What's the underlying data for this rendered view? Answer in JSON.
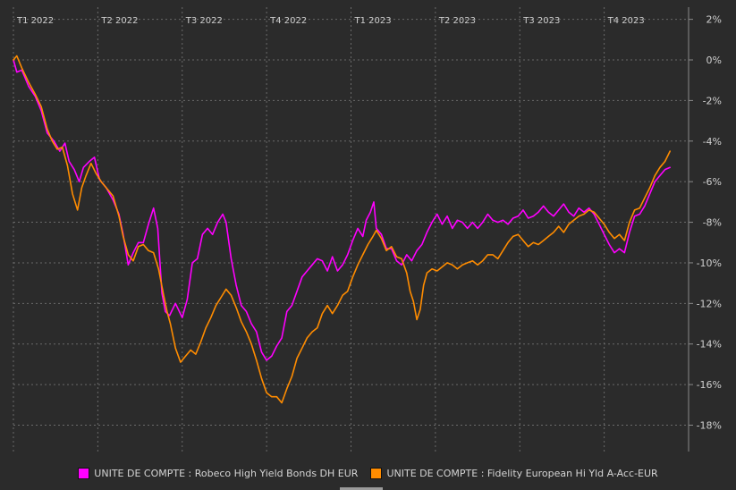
{
  "chart_data": {
    "type": "line",
    "title": "",
    "xlabel": "",
    "ylabel": "",
    "x_tick_labels": [
      "T1 2022",
      "T2 2022",
      "T3 2022",
      "T4 2022",
      "T1 2023",
      "T2 2023",
      "T3 2023",
      "T4 2023"
    ],
    "y_tick_labels": [
      "2%",
      "0%",
      "-2%",
      "-4%",
      "-6%",
      "-8%",
      "-10%",
      "-12%",
      "-14%",
      "-16%",
      "-18%"
    ],
    "y_ticks": [
      2,
      0,
      -2,
      -4,
      -6,
      -8,
      -10,
      -12,
      -14,
      -16,
      -18
    ],
    "ylim": [
      -19.3,
      2.6
    ],
    "xlim": [
      0.0,
      8.0
    ],
    "x_unit": "quarters since start of T1 2022",
    "grid": true,
    "legend_position": "bottom",
    "series": [
      {
        "name": "UNITE DE COMPTE : Robeco High Yield Bonds DH EUR",
        "color": "#ff00ff",
        "points": [
          [
            0.0,
            0.0
          ],
          [
            0.04,
            -0.6
          ],
          [
            0.1,
            -0.5
          ],
          [
            0.18,
            -1.3
          ],
          [
            0.26,
            -1.8
          ],
          [
            0.33,
            -2.5
          ],
          [
            0.4,
            -3.6
          ],
          [
            0.48,
            -4.0
          ],
          [
            0.55,
            -4.5
          ],
          [
            0.61,
            -4.1
          ],
          [
            0.66,
            -5.0
          ],
          [
            0.72,
            -5.4
          ],
          [
            0.78,
            -6.0
          ],
          [
            0.83,
            -5.3
          ],
          [
            0.9,
            -5.0
          ],
          [
            0.96,
            -4.8
          ],
          [
            1.02,
            -5.9
          ],
          [
            1.1,
            -6.3
          ],
          [
            1.18,
            -6.9
          ],
          [
            1.25,
            -7.6
          ],
          [
            1.3,
            -8.6
          ],
          [
            1.36,
            -10.1
          ],
          [
            1.42,
            -9.5
          ],
          [
            1.48,
            -9.0
          ],
          [
            1.54,
            -9.0
          ],
          [
            1.6,
            -8.1
          ],
          [
            1.66,
            -7.3
          ],
          [
            1.71,
            -8.3
          ],
          [
            1.76,
            -11.5
          ],
          [
            1.8,
            -12.4
          ],
          [
            1.85,
            -12.6
          ],
          [
            1.92,
            -12.0
          ],
          [
            2.0,
            -12.7
          ],
          [
            2.06,
            -11.8
          ],
          [
            2.12,
            -10.0
          ],
          [
            2.18,
            -9.8
          ],
          [
            2.24,
            -8.6
          ],
          [
            2.3,
            -8.3
          ],
          [
            2.36,
            -8.6
          ],
          [
            2.42,
            -8.0
          ],
          [
            2.48,
            -7.6
          ],
          [
            2.52,
            -8.0
          ],
          [
            2.58,
            -9.8
          ],
          [
            2.64,
            -11.1
          ],
          [
            2.7,
            -12.1
          ],
          [
            2.76,
            -12.4
          ],
          [
            2.82,
            -13.0
          ],
          [
            2.88,
            -13.4
          ],
          [
            2.94,
            -14.4
          ],
          [
            3.0,
            -14.8
          ],
          [
            3.06,
            -14.6
          ],
          [
            3.12,
            -14.1
          ],
          [
            3.18,
            -13.7
          ],
          [
            3.24,
            -12.4
          ],
          [
            3.3,
            -12.1
          ],
          [
            3.36,
            -11.4
          ],
          [
            3.42,
            -10.7
          ],
          [
            3.48,
            -10.4
          ],
          [
            3.54,
            -10.1
          ],
          [
            3.6,
            -9.8
          ],
          [
            3.66,
            -9.9
          ],
          [
            3.72,
            -10.4
          ],
          [
            3.78,
            -9.7
          ],
          [
            3.84,
            -10.4
          ],
          [
            3.9,
            -10.1
          ],
          [
            3.96,
            -9.6
          ],
          [
            4.02,
            -8.9
          ],
          [
            4.08,
            -8.3
          ],
          [
            4.14,
            -8.7
          ],
          [
            4.18,
            -7.9
          ],
          [
            4.23,
            -7.5
          ],
          [
            4.27,
            -7.0
          ],
          [
            4.3,
            -8.3
          ],
          [
            4.36,
            -8.6
          ],
          [
            4.42,
            -9.3
          ],
          [
            4.48,
            -9.3
          ],
          [
            4.54,
            -9.9
          ],
          [
            4.6,
            -10.1
          ],
          [
            4.66,
            -9.6
          ],
          [
            4.72,
            -9.9
          ],
          [
            4.78,
            -9.4
          ],
          [
            4.84,
            -9.1
          ],
          [
            4.9,
            -8.5
          ],
          [
            4.96,
            -8.0
          ],
          [
            5.02,
            -7.6
          ],
          [
            5.08,
            -8.1
          ],
          [
            5.14,
            -7.7
          ],
          [
            5.2,
            -8.3
          ],
          [
            5.26,
            -7.9
          ],
          [
            5.32,
            -8.0
          ],
          [
            5.38,
            -8.3
          ],
          [
            5.44,
            -8.0
          ],
          [
            5.5,
            -8.3
          ],
          [
            5.56,
            -8.0
          ],
          [
            5.62,
            -7.6
          ],
          [
            5.68,
            -7.9
          ],
          [
            5.74,
            -8.0
          ],
          [
            5.8,
            -7.9
          ],
          [
            5.86,
            -8.1
          ],
          [
            5.92,
            -7.8
          ],
          [
            5.98,
            -7.7
          ],
          [
            6.04,
            -7.4
          ],
          [
            6.1,
            -7.8
          ],
          [
            6.16,
            -7.7
          ],
          [
            6.22,
            -7.5
          ],
          [
            6.28,
            -7.2
          ],
          [
            6.34,
            -7.5
          ],
          [
            6.4,
            -7.7
          ],
          [
            6.46,
            -7.4
          ],
          [
            6.52,
            -7.1
          ],
          [
            6.58,
            -7.5
          ],
          [
            6.64,
            -7.7
          ],
          [
            6.7,
            -7.3
          ],
          [
            6.76,
            -7.5
          ],
          [
            6.82,
            -7.3
          ],
          [
            6.88,
            -7.6
          ],
          [
            6.94,
            -8.1
          ],
          [
            7.0,
            -8.6
          ],
          [
            7.06,
            -9.1
          ],
          [
            7.12,
            -9.5
          ],
          [
            7.18,
            -9.3
          ],
          [
            7.24,
            -9.5
          ],
          [
            7.3,
            -8.5
          ],
          [
            7.36,
            -7.7
          ],
          [
            7.42,
            -7.6
          ],
          [
            7.48,
            -7.2
          ],
          [
            7.54,
            -6.6
          ],
          [
            7.6,
            -6.0
          ],
          [
            7.66,
            -5.7
          ],
          [
            7.72,
            -5.4
          ],
          [
            7.78,
            -5.3
          ]
        ]
      },
      {
        "name": "UNITE DE COMPTE : Fidelity European Hi Yld A-Acc-EUR",
        "color": "#ff8c00",
        "points": [
          [
            0.0,
            0.0
          ],
          [
            0.04,
            0.2
          ],
          [
            0.1,
            -0.4
          ],
          [
            0.18,
            -1.1
          ],
          [
            0.26,
            -1.7
          ],
          [
            0.33,
            -2.3
          ],
          [
            0.4,
            -3.4
          ],
          [
            0.46,
            -4.0
          ],
          [
            0.52,
            -4.4
          ],
          [
            0.58,
            -4.3
          ],
          [
            0.64,
            -5.2
          ],
          [
            0.7,
            -6.6
          ],
          [
            0.76,
            -7.4
          ],
          [
            0.81,
            -6.3
          ],
          [
            0.86,
            -5.7
          ],
          [
            0.92,
            -5.1
          ],
          [
            0.98,
            -5.6
          ],
          [
            1.04,
            -6.0
          ],
          [
            1.1,
            -6.3
          ],
          [
            1.18,
            -6.7
          ],
          [
            1.25,
            -7.7
          ],
          [
            1.3,
            -8.7
          ],
          [
            1.36,
            -9.6
          ],
          [
            1.42,
            -9.9
          ],
          [
            1.48,
            -9.2
          ],
          [
            1.54,
            -9.1
          ],
          [
            1.6,
            -9.4
          ],
          [
            1.66,
            -9.5
          ],
          [
            1.72,
            -10.3
          ],
          [
            1.78,
            -11.6
          ],
          [
            1.82,
            -12.4
          ],
          [
            1.86,
            -13.0
          ],
          [
            1.92,
            -14.2
          ],
          [
            1.98,
            -14.9
          ],
          [
            2.04,
            -14.6
          ],
          [
            2.1,
            -14.3
          ],
          [
            2.16,
            -14.5
          ],
          [
            2.22,
            -13.9
          ],
          [
            2.28,
            -13.2
          ],
          [
            2.34,
            -12.7
          ],
          [
            2.4,
            -12.1
          ],
          [
            2.46,
            -11.7
          ],
          [
            2.52,
            -11.3
          ],
          [
            2.58,
            -11.6
          ],
          [
            2.64,
            -12.2
          ],
          [
            2.7,
            -12.9
          ],
          [
            2.76,
            -13.4
          ],
          [
            2.82,
            -14.0
          ],
          [
            2.88,
            -14.8
          ],
          [
            2.94,
            -15.7
          ],
          [
            3.0,
            -16.4
          ],
          [
            3.06,
            -16.6
          ],
          [
            3.12,
            -16.6
          ],
          [
            3.18,
            -16.9
          ],
          [
            3.24,
            -16.2
          ],
          [
            3.3,
            -15.6
          ],
          [
            3.36,
            -14.7
          ],
          [
            3.42,
            -14.2
          ],
          [
            3.48,
            -13.7
          ],
          [
            3.54,
            -13.4
          ],
          [
            3.6,
            -13.2
          ],
          [
            3.66,
            -12.5
          ],
          [
            3.72,
            -12.1
          ],
          [
            3.78,
            -12.5
          ],
          [
            3.84,
            -12.1
          ],
          [
            3.9,
            -11.6
          ],
          [
            3.96,
            -11.4
          ],
          [
            4.02,
            -10.7
          ],
          [
            4.08,
            -10.1
          ],
          [
            4.14,
            -9.6
          ],
          [
            4.2,
            -9.1
          ],
          [
            4.26,
            -8.7
          ],
          [
            4.3,
            -8.4
          ],
          [
            4.36,
            -8.8
          ],
          [
            4.42,
            -9.4
          ],
          [
            4.48,
            -9.2
          ],
          [
            4.54,
            -9.7
          ],
          [
            4.6,
            -9.8
          ],
          [
            4.66,
            -10.5
          ],
          [
            4.7,
            -11.4
          ],
          [
            4.74,
            -11.9
          ],
          [
            4.78,
            -12.8
          ],
          [
            4.82,
            -12.3
          ],
          [
            4.86,
            -11.1
          ],
          [
            4.9,
            -10.5
          ],
          [
            4.96,
            -10.3
          ],
          [
            5.02,
            -10.4
          ],
          [
            5.08,
            -10.2
          ],
          [
            5.14,
            -10.0
          ],
          [
            5.2,
            -10.1
          ],
          [
            5.26,
            -10.3
          ],
          [
            5.32,
            -10.1
          ],
          [
            5.38,
            -10.0
          ],
          [
            5.44,
            -9.9
          ],
          [
            5.5,
            -10.1
          ],
          [
            5.56,
            -9.9
          ],
          [
            5.62,
            -9.6
          ],
          [
            5.68,
            -9.6
          ],
          [
            5.74,
            -9.8
          ],
          [
            5.8,
            -9.4
          ],
          [
            5.86,
            -9.0
          ],
          [
            5.92,
            -8.7
          ],
          [
            5.98,
            -8.6
          ],
          [
            6.04,
            -8.9
          ],
          [
            6.1,
            -9.2
          ],
          [
            6.16,
            -9.0
          ],
          [
            6.22,
            -9.1
          ],
          [
            6.28,
            -8.9
          ],
          [
            6.34,
            -8.7
          ],
          [
            6.4,
            -8.5
          ],
          [
            6.46,
            -8.2
          ],
          [
            6.52,
            -8.5
          ],
          [
            6.58,
            -8.1
          ],
          [
            6.64,
            -7.9
          ],
          [
            6.7,
            -7.7
          ],
          [
            6.76,
            -7.6
          ],
          [
            6.82,
            -7.4
          ],
          [
            6.88,
            -7.5
          ],
          [
            6.94,
            -7.8
          ],
          [
            7.0,
            -8.1
          ],
          [
            7.06,
            -8.5
          ],
          [
            7.12,
            -8.8
          ],
          [
            7.18,
            -8.6
          ],
          [
            7.24,
            -8.9
          ],
          [
            7.3,
            -8.0
          ],
          [
            7.36,
            -7.4
          ],
          [
            7.42,
            -7.3
          ],
          [
            7.48,
            -6.8
          ],
          [
            7.54,
            -6.3
          ],
          [
            7.6,
            -5.7
          ],
          [
            7.66,
            -5.3
          ],
          [
            7.72,
            -5.0
          ],
          [
            7.78,
            -4.5
          ]
        ]
      }
    ]
  }
}
